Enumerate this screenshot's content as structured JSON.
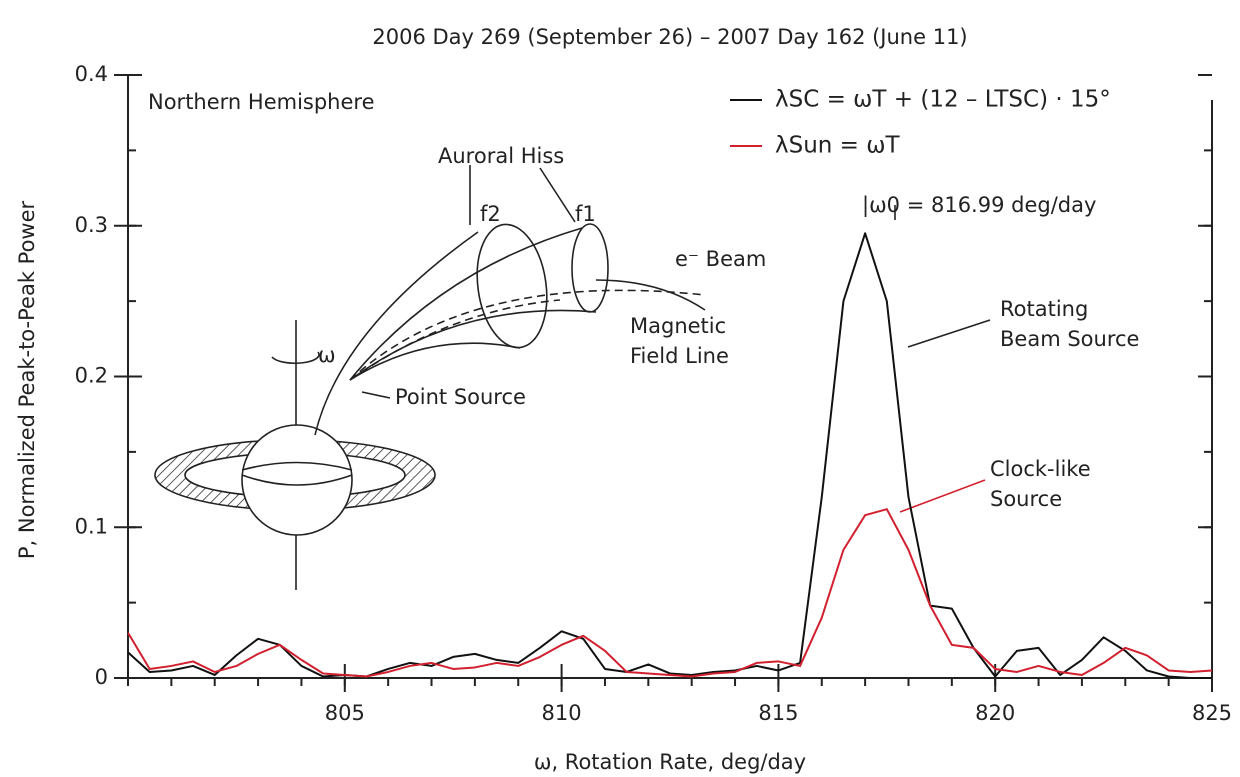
{
  "chart_data": {
    "type": "line",
    "title": "2006 Day 269 (September 26) – 2007 Day 162 (June 11)",
    "x_label": "ω, Rotation Rate, deg/day",
    "y_label": "P, Normalized Peak-to-Peak Power",
    "xlim": [
      800,
      825
    ],
    "xticks": [
      805,
      810,
      815,
      820,
      825
    ],
    "ylim": [
      0,
      0.4
    ],
    "yticks": [
      0,
      0.1,
      0.2,
      0.3,
      0.4
    ],
    "legend": "upper right",
    "x": [
      800,
      800.5,
      801,
      801.5,
      802,
      802.5,
      803,
      803.5,
      804,
      804.5,
      805,
      805.5,
      806,
      806.5,
      807,
      807.5,
      808,
      808.5,
      809,
      809.5,
      810,
      810.5,
      811,
      811.5,
      812,
      812.5,
      813,
      813.5,
      814,
      814.5,
      815,
      815.5,
      816,
      816.5,
      817,
      817.5,
      818,
      818.5,
      819,
      819.5,
      820,
      820.5,
      821,
      821.5,
      822,
      822.5,
      823,
      823.5,
      824,
      824.5,
      825
    ],
    "series": [
      {
        "name": "λSC = ωT + (12 – LTSC) · 15°",
        "color": "#111111",
        "values": [
          0.017,
          0.004,
          0.005,
          0.008,
          0.002,
          0.015,
          0.026,
          0.022,
          0.008,
          0.001,
          0.002,
          0.001,
          0.006,
          0.01,
          0.008,
          0.014,
          0.016,
          0.012,
          0.01,
          0.02,
          0.031,
          0.026,
          0.006,
          0.004,
          0.009,
          0.003,
          0.002,
          0.004,
          0.005,
          0.008,
          0.005,
          0.01,
          0.12,
          0.25,
          0.295,
          0.25,
          0.12,
          0.048,
          0.046,
          0.02,
          0.001,
          0.018,
          0.02,
          0.002,
          0.012,
          0.027,
          0.018,
          0.005,
          0.001,
          0.0,
          0.0
        ]
      },
      {
        "name": "λSun = ωT",
        "color": "#d2202f",
        "values": [
          0.03,
          0.006,
          0.008,
          0.011,
          0.004,
          0.008,
          0.016,
          0.022,
          0.012,
          0.003,
          0.002,
          0.001,
          0.004,
          0.008,
          0.01,
          0.006,
          0.007,
          0.01,
          0.008,
          0.014,
          0.022,
          0.028,
          0.018,
          0.004,
          0.003,
          0.002,
          0.001,
          0.003,
          0.004,
          0.01,
          0.011,
          0.008,
          0.04,
          0.085,
          0.108,
          0.112,
          0.085,
          0.048,
          0.022,
          0.02,
          0.006,
          0.004,
          0.008,
          0.004,
          0.002,
          0.01,
          0.02,
          0.015,
          0.005,
          0.004,
          0.005
        ]
      }
    ],
    "annotations": [
      {
        "text": "Northern Hemisphere"
      },
      {
        "text": "Auroral Hiss"
      },
      {
        "text": "f2"
      },
      {
        "text": "f1"
      },
      {
        "text": "e⁻ Beam"
      },
      {
        "lines": [
          "Magnetic",
          "Field Line"
        ]
      },
      {
        "text": "ω"
      },
      {
        "text": "Point Source"
      },
      {
        "text": "|ω0 = 816.99 deg/day"
      },
      {
        "lines": [
          "Rotating",
          "Beam Source"
        ]
      },
      {
        "lines": [
          "Clock-like",
          "Source"
        ],
        "color": "#d2202f"
      }
    ]
  }
}
